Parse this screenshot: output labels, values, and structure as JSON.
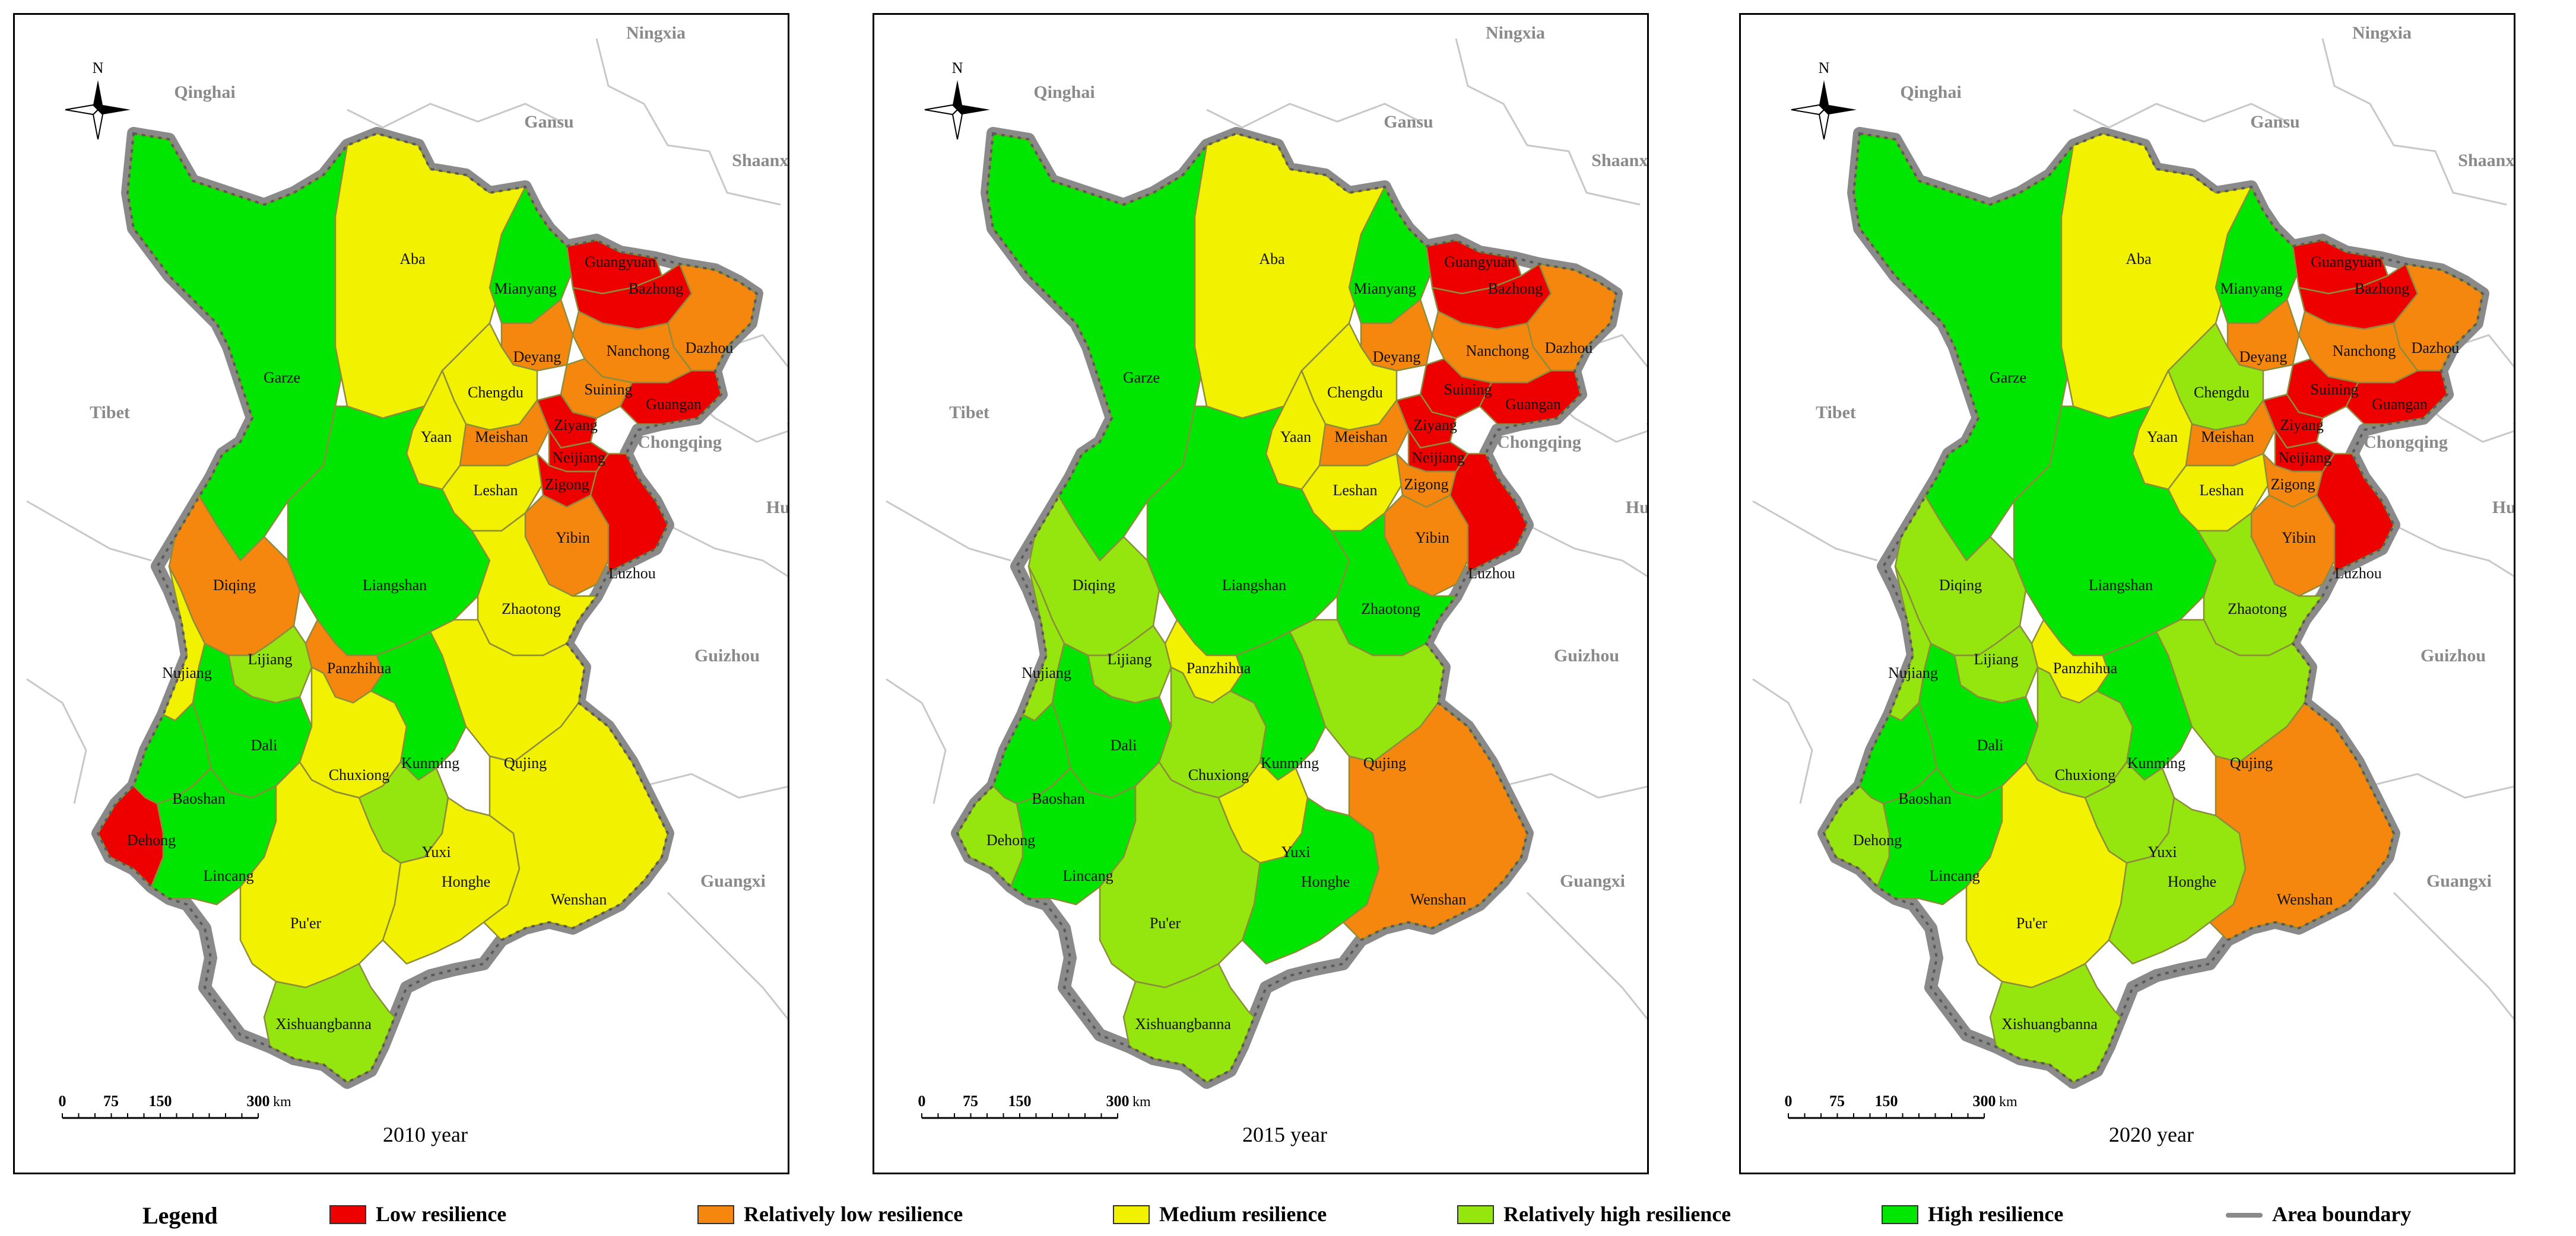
{
  "colors": {
    "low": "#ee0000",
    "rel_low": "#f5870f",
    "medium": "#f2f200",
    "rel_high": "#95e50f",
    "high": "#00e600",
    "boundary": "#8a8a8a",
    "other_province_border": "#c8c8c8"
  },
  "north_arrow_label": "N",
  "scale_bar": {
    "ticks": [
      "0",
      "75",
      "150",
      "300"
    ],
    "unit": "km"
  },
  "neighbors": [
    {
      "name": "Ningxia"
    },
    {
      "name": "Qinghai"
    },
    {
      "name": "Gansu"
    },
    {
      "name": "Shaanxi"
    },
    {
      "name": "Tibet"
    },
    {
      "name": "Hubei"
    },
    {
      "name": "Chongqing"
    },
    {
      "name": "Hunan"
    },
    {
      "name": "Hunan"
    },
    {
      "name": "Guizhou"
    },
    {
      "name": "Guangxi"
    }
  ],
  "panels": [
    {
      "year_label": "2010 year",
      "cities": {
        "Garze": "high",
        "Aba": "medium",
        "Guangyuan": "low",
        "Bazhong": "low",
        "Mianyang": "high",
        "Dazhou": "rel_low",
        "Nanchong": "rel_low",
        "Deyang": "rel_low",
        "Chengdu": "medium",
        "Suining": "rel_low",
        "Guangan": "low",
        "Yaan": "medium",
        "Meishan": "rel_low",
        "Ziyang": "low",
        "Neijiang": "low",
        "Leshan": "medium",
        "Zigong": "low",
        "Yibin": "rel_low",
        "Luzhou": "low",
        "Liangshan": "high",
        "Diqing": "rel_low",
        "Zhaotong": "medium",
        "Nujiang": "medium",
        "Lijiang": "rel_high",
        "Panzhihua": "rel_low",
        "Dali": "high",
        "Chuxiong": "medium",
        "Kunming": "high",
        "Qujing": "medium",
        "Baoshan": "high",
        "Dehong": "low",
        "Lincang": "high",
        "Yuxi": "rel_high",
        "Pu'er": "medium",
        "Honghe": "medium",
        "Wenshan": "medium",
        "Xishuangbanna": "rel_high"
      }
    },
    {
      "year_label": "2015 year",
      "cities": {
        "Garze": "high",
        "Aba": "medium",
        "Guangyuan": "low",
        "Bazhong": "low",
        "Mianyang": "high",
        "Dazhou": "rel_low",
        "Nanchong": "rel_low",
        "Deyang": "rel_low",
        "Chengdu": "medium",
        "Suining": "low",
        "Guangan": "low",
        "Yaan": "medium",
        "Meishan": "rel_low",
        "Ziyang": "low",
        "Neijiang": "low",
        "Leshan": "medium",
        "Zigong": "rel_low",
        "Yibin": "rel_low",
        "Luzhou": "low",
        "Liangshan": "high",
        "Diqing": "rel_high",
        "Zhaotong": "high",
        "Nujiang": "rel_high",
        "Lijiang": "rel_high",
        "Panzhihua": "medium",
        "Dali": "high",
        "Chuxiong": "rel_high",
        "Kunming": "high",
        "Qujing": "rel_high",
        "Baoshan": "high",
        "Dehong": "rel_high",
        "Lincang": "high",
        "Yuxi": "medium",
        "Pu'er": "rel_high",
        "Honghe": "high",
        "Wenshan": "rel_low",
        "Xishuangbanna": "rel_high"
      }
    },
    {
      "year_label": "2020 year",
      "cities": {
        "Garze": "high",
        "Aba": "medium",
        "Guangyuan": "low",
        "Bazhong": "low",
        "Mianyang": "high",
        "Dazhou": "rel_low",
        "Nanchong": "rel_low",
        "Deyang": "rel_low",
        "Chengdu": "rel_high",
        "Suining": "low",
        "Guangan": "low",
        "Yaan": "medium",
        "Meishan": "rel_low",
        "Ziyang": "low",
        "Neijiang": "low",
        "Leshan": "medium",
        "Zigong": "rel_low",
        "Yibin": "rel_low",
        "Luzhou": "low",
        "Liangshan": "high",
        "Diqing": "rel_high",
        "Zhaotong": "rel_high",
        "Nujiang": "rel_high",
        "Lijiang": "rel_high",
        "Panzhihua": "medium",
        "Dali": "high",
        "Chuxiong": "rel_high",
        "Kunming": "high",
        "Qujing": "rel_high",
        "Baoshan": "high",
        "Dehong": "rel_high",
        "Lincang": "high",
        "Yuxi": "rel_high",
        "Pu'er": "medium",
        "Honghe": "rel_high",
        "Wenshan": "rel_low",
        "Xishuangbanna": "rel_high"
      }
    }
  ],
  "legend": {
    "title": "Legend",
    "items": [
      {
        "label": "Low resilience",
        "key": "low"
      },
      {
        "label": "Relatively low resilience",
        "key": "rel_low"
      },
      {
        "label": "Medium resilience",
        "key": "medium"
      },
      {
        "label": "Relatively high resilience",
        "key": "rel_high"
      },
      {
        "label": "High resilience",
        "key": "high"
      },
      {
        "label": "Area boundary",
        "key": "boundary"
      }
    ]
  }
}
